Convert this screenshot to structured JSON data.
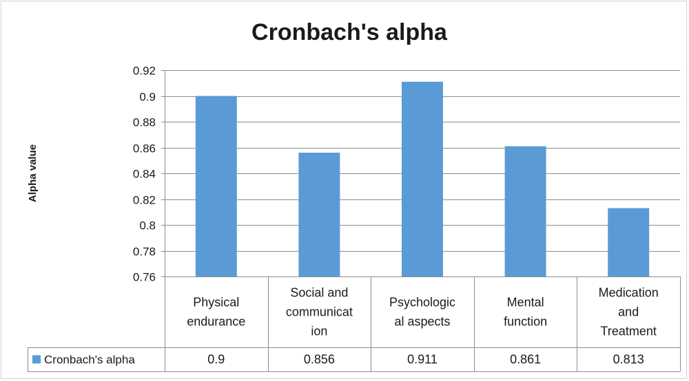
{
  "chart_data": {
    "type": "bar",
    "title": "Cronbach's alpha",
    "ylabel": "Alpha value",
    "xlabel": "",
    "categories": [
      [
        "Physical",
        "endurance"
      ],
      [
        "Social and",
        "communicat",
        "ion"
      ],
      [
        "Psychologic",
        "al aspects"
      ],
      [
        "Mental",
        "function"
      ],
      [
        "Medication",
        "and",
        "Treatment"
      ]
    ],
    "series": [
      {
        "name": "Cronbach's alpha",
        "values": [
          0.9,
          0.856,
          0.911,
          0.861,
          0.813
        ],
        "value_labels": [
          "0.9",
          "0.856",
          "0.911",
          "0.861",
          "0.813"
        ],
        "color": "#5b9bd5"
      }
    ],
    "ylim": [
      0.76,
      0.92
    ],
    "yticks": [
      0.76,
      0.78,
      0.8,
      0.82,
      0.84,
      0.86,
      0.88,
      0.9,
      0.92
    ],
    "ytick_labels": [
      "0.76",
      "0.78",
      "0.8",
      "0.82",
      "0.84",
      "0.86",
      "0.88",
      "0.9",
      "0.92"
    ],
    "grid": true,
    "legend": "data-table-left",
    "data_table": true,
    "colors": {
      "bar": "#5b9bd5",
      "grid": "#8c8c8c",
      "text": "#1a1a1a"
    }
  }
}
